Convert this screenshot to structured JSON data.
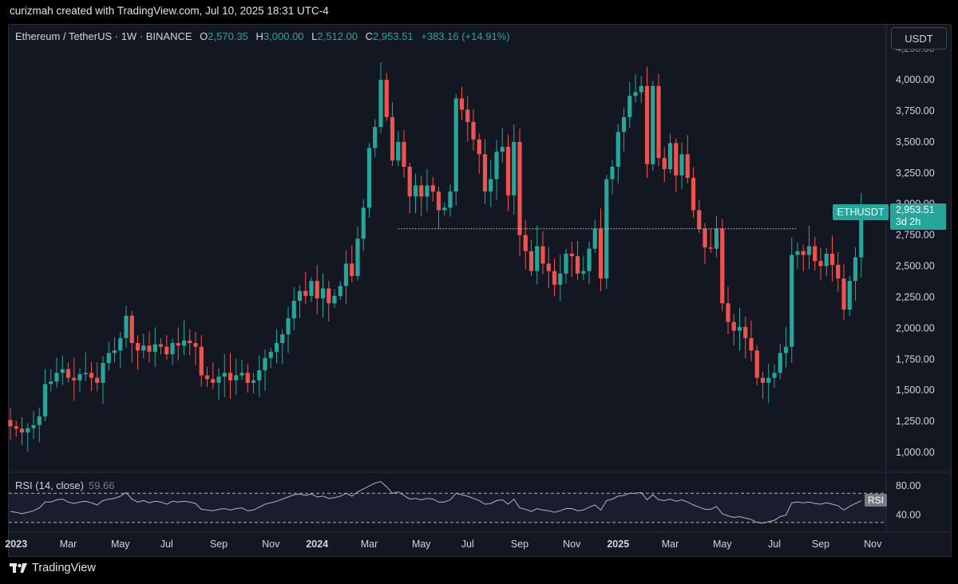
{
  "header": {
    "attribution": "curizmah created with TradingView.com, Jul 10, 2025 18:31 UTC-4"
  },
  "legend": {
    "symbol": "Ethereum / TetherUS · 1W · BINANCE",
    "open_label": "O",
    "open": "2,570.35",
    "high_label": "H",
    "high": "3,000.00",
    "low_label": "L",
    "low": "2,512.00",
    "close_label": "C",
    "close": "2,953.51",
    "change": "+383.16 (+14.91%)"
  },
  "currency_button": "USDT",
  "symbol_tag": "ETHUSDT",
  "last_price_tag": {
    "price": "2,953.51",
    "countdown": "3d 2h"
  },
  "rsi": {
    "title": "RSI (14, close)",
    "value": "59.66",
    "tag": "RSI"
  },
  "footer": {
    "brand": "TradingView",
    "logo_icon": "tradingview-logo-icon"
  },
  "colors": {
    "up": "#26a69a",
    "down": "#ef5350",
    "background": "#131722",
    "rsi_line": "#b2b5be"
  },
  "chart_data": {
    "type": "candlestick",
    "title": "Ethereum / TetherUS · 1W · BINANCE",
    "interval": "1W",
    "ylim": [
      900,
      4150
    ],
    "y_ticks": [
      "1,000.00",
      "1,250.00",
      "1,500.00",
      "1,750.00",
      "2,000.00",
      "2,250.00",
      "2,500.00",
      "2,750.00",
      "3,000.00",
      "3,250.00",
      "3,500.00",
      "3,750.00",
      "4,000.00"
    ],
    "x_ticks": [
      {
        "label": "2023",
        "year": true,
        "index": 1
      },
      {
        "label": "Mar",
        "year": false,
        "index": 10
      },
      {
        "label": "May",
        "year": false,
        "index": 19
      },
      {
        "label": "Jul",
        "year": false,
        "index": 27
      },
      {
        "label": "Sep",
        "year": false,
        "index": 36
      },
      {
        "label": "Nov",
        "year": false,
        "index": 45
      },
      {
        "label": "2024",
        "year": true,
        "index": 53
      },
      {
        "label": "Mar",
        "year": false,
        "index": 62
      },
      {
        "label": "May",
        "year": false,
        "index": 71
      },
      {
        "label": "Jul",
        "year": false,
        "index": 79
      },
      {
        "label": "Sep",
        "year": false,
        "index": 88
      },
      {
        "label": "Nov",
        "year": false,
        "index": 97
      },
      {
        "label": "2025",
        "year": true,
        "index": 105
      },
      {
        "label": "Mar",
        "year": false,
        "index": 114
      },
      {
        "label": "May",
        "year": false,
        "index": 123
      },
      {
        "label": "Jul",
        "year": false,
        "index": 132
      },
      {
        "label": "Sep",
        "year": false,
        "index": 140
      },
      {
        "label": "Nov",
        "year": false,
        "index": 149
      }
    ],
    "horizontal_line": {
      "price": 2800,
      "from_index": 67,
      "to_index": 136,
      "style": "dotted"
    },
    "close": [
      1210,
      1190,
      1160,
      1195,
      1220,
      1290,
      1550,
      1570,
      1640,
      1670,
      1600,
      1580,
      1630,
      1640,
      1600,
      1560,
      1720,
      1800,
      1820,
      1920,
      2100,
      1880,
      1820,
      1860,
      1810,
      1870,
      1850,
      1790,
      1880,
      1860,
      1900,
      1880,
      1850,
      1620,
      1590,
      1560,
      1610,
      1640,
      1580,
      1620,
      1640,
      1560,
      1580,
      1660,
      1760,
      1810,
      1880,
      1950,
      2080,
      2220,
      2300,
      2260,
      2380,
      2240,
      2320,
      2200,
      2260,
      2340,
      2520,
      2420,
      2720,
      2970,
      3450,
      3620,
      4000,
      3700,
      3350,
      3500,
      3300,
      3060,
      3150,
      3060,
      3150,
      3100,
      2950,
      2970,
      3100,
      3850,
      3760,
      3660,
      3520,
      3400,
      3100,
      3200,
      3420,
      3460,
      3070,
      3500,
      2750,
      2620,
      2460,
      2660,
      2520,
      2460,
      2350,
      2440,
      2600,
      2580,
      2440,
      2460,
      2640,
      2800,
      2400,
      3200,
      3300,
      3580,
      3700,
      3870,
      3900,
      3950,
      3320,
      3950,
      3370,
      3280,
      3490,
      3230,
      3400,
      3210,
      2950,
      2800,
      2650,
      2640,
      2800,
      2200,
      2050,
      1980,
      2010,
      1920,
      1820,
      1600,
      1560,
      1600,
      1640,
      1800,
      1850,
      2590,
      2620,
      2590,
      2660,
      2540,
      2500,
      2600,
      2510,
      2400,
      2150,
      2380,
      2570,
      2953
    ],
    "open_note": "open of each candle = previous close",
    "rsi_ylim": [
      20,
      90
    ],
    "rsi_levels": [
      70,
      30
    ],
    "rsi_ticks": [
      "80.00",
      "40.00"
    ],
    "rsi_values": [
      45,
      44,
      42,
      44,
      46,
      50,
      58,
      58,
      61,
      62,
      58,
      56,
      58,
      59,
      57,
      54,
      60,
      62,
      63,
      66,
      71,
      62,
      58,
      60,
      57,
      59,
      58,
      55,
      59,
      58,
      59,
      58,
      56,
      48,
      47,
      46,
      48,
      49,
      47,
      49,
      50,
      46,
      47,
      51,
      55,
      57,
      59,
      62,
      65,
      68,
      69,
      67,
      69,
      65,
      66,
      63,
      64,
      66,
      70,
      66,
      72,
      76,
      80,
      84,
      86,
      79,
      70,
      72,
      67,
      62,
      63,
      61,
      63,
      62,
      58,
      58,
      61,
      70,
      68,
      66,
      63,
      60,
      55,
      56,
      60,
      61,
      55,
      62,
      50,
      48,
      45,
      49,
      47,
      46,
      44,
      46,
      49,
      49,
      46,
      47,
      51,
      54,
      47,
      60,
      62,
      66,
      67,
      70,
      70,
      71,
      61,
      68,
      61,
      60,
      62,
      59,
      61,
      58,
      54,
      51,
      48,
      48,
      52,
      42,
      39,
      37,
      38,
      36,
      34,
      30,
      29,
      31,
      33,
      38,
      40,
      57,
      58,
      57,
      58,
      56,
      55,
      57,
      55,
      53,
      47,
      52,
      56,
      59.66
    ]
  }
}
